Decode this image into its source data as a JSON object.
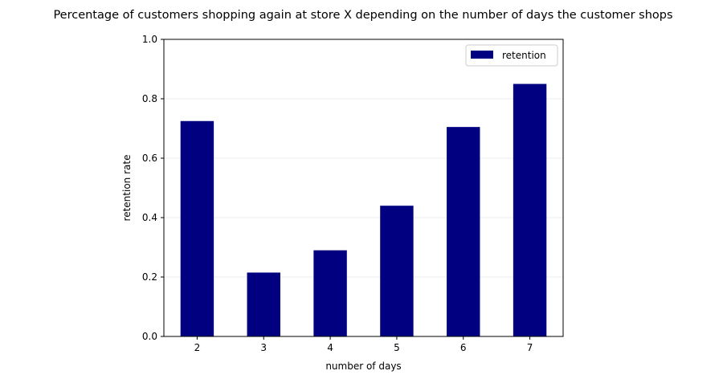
{
  "chart_data": {
    "type": "bar",
    "title": "Percentage of customers shopping again at store X depending on the number of days the customer shops",
    "xlabel": "number of days",
    "ylabel": "retention rate",
    "categories": [
      "2",
      "3",
      "4",
      "5",
      "6",
      "7"
    ],
    "series": [
      {
        "name": "retention",
        "values": [
          0.725,
          0.215,
          0.29,
          0.44,
          0.705,
          0.85
        ],
        "color": "#000080"
      }
    ],
    "ylim": [
      0,
      1.0
    ],
    "yticks": [
      "0.0",
      "0.2",
      "0.4",
      "0.6",
      "0.8",
      "1.0"
    ],
    "grid": "horizontal",
    "legend_position": "top-right"
  }
}
